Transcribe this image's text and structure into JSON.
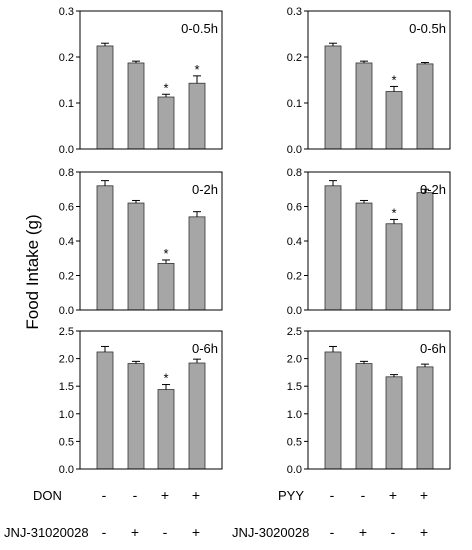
{
  "ylabel": "Food Intake (g)",
  "colors": {
    "bar": "#a6a6a6",
    "axis": "#000000"
  },
  "row_labels": {
    "left": {
      "row1": {
        "name": "DON",
        "signs": [
          "-",
          "-",
          "+",
          "+"
        ]
      },
      "row2": {
        "name": "JNJ-31020028",
        "signs": [
          "-",
          "+",
          "-",
          "+"
        ]
      }
    },
    "right": {
      "row1": {
        "name": "PYY",
        "signs": [
          "-",
          "-",
          "+",
          "+"
        ]
      },
      "row2": {
        "name": "JNJ-3020028",
        "signs": [
          "-",
          "+",
          "-",
          "+"
        ]
      }
    }
  },
  "chart_data": [
    {
      "type": "bar",
      "interval_label": "0-0.5h",
      "ylim": [
        0,
        0.3
      ],
      "yticks": [
        "0.0",
        "0.1",
        "0.2",
        "0.3"
      ],
      "values": [
        0.224,
        0.187,
        0.113,
        0.143
      ],
      "errors": [
        0.006,
        0.004,
        0.006,
        0.016
      ],
      "significant": [
        "",
        "",
        "*",
        "*"
      ]
    },
    {
      "type": "bar",
      "interval_label": "0-0.5h",
      "ylim": [
        0,
        0.3
      ],
      "yticks": [
        "0.0",
        "0.1",
        "0.2",
        "0.3"
      ],
      "values": [
        0.224,
        0.187,
        0.125,
        0.185
      ],
      "errors": [
        0.006,
        0.004,
        0.011,
        0.003
      ],
      "significant": [
        "",
        "",
        "*",
        ""
      ]
    },
    {
      "type": "bar",
      "interval_label": "0-2h",
      "ylim": [
        0,
        0.8
      ],
      "yticks": [
        "0.0",
        "0.2",
        "0.4",
        "0.6",
        "0.8"
      ],
      "values": [
        0.72,
        0.62,
        0.27,
        0.54
      ],
      "errors": [
        0.03,
        0.015,
        0.02,
        0.03
      ],
      "significant": [
        "",
        "",
        "*",
        ""
      ]
    },
    {
      "type": "bar",
      "interval_label": "0-2h",
      "ylim": [
        0,
        0.8
      ],
      "yticks": [
        "0.0",
        "0.2",
        "0.4",
        "0.6",
        "0.8"
      ],
      "values": [
        0.72,
        0.62,
        0.5,
        0.68
      ],
      "errors": [
        0.03,
        0.015,
        0.025,
        0.02
      ],
      "significant": [
        "",
        "",
        "*",
        ""
      ]
    },
    {
      "type": "bar",
      "interval_label": "0-6h",
      "ylim": [
        0,
        2.5
      ],
      "yticks": [
        "0.0",
        "0.5",
        "1.0",
        "1.5",
        "2.0",
        "2.5"
      ],
      "values": [
        2.12,
        1.91,
        1.44,
        1.92
      ],
      "errors": [
        0.1,
        0.04,
        0.09,
        0.07
      ],
      "significant": [
        "",
        "",
        "*",
        ""
      ]
    },
    {
      "type": "bar",
      "interval_label": "0-6h",
      "ylim": [
        0,
        2.5
      ],
      "yticks": [
        "0.0",
        "0.5",
        "1.0",
        "1.5",
        "2.0",
        "2.5"
      ],
      "values": [
        2.12,
        1.91,
        1.67,
        1.85
      ],
      "errors": [
        0.1,
        0.04,
        0.04,
        0.05
      ],
      "significant": [
        "",
        "",
        "",
        ""
      ]
    }
  ]
}
